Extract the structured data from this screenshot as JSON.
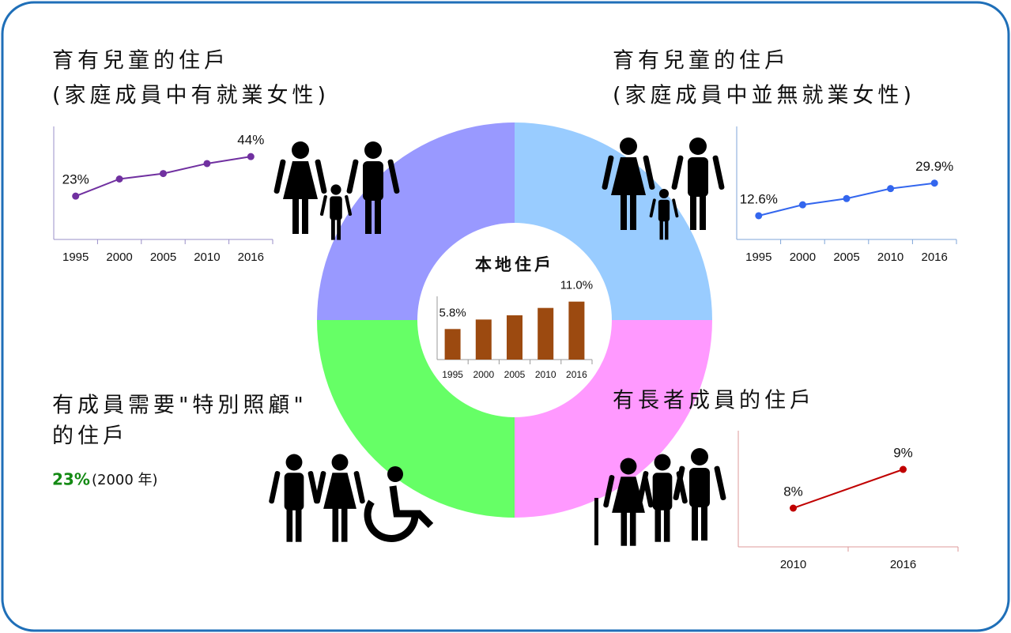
{
  "chart_data": [
    {
      "type": "line",
      "title": [
        "育有兒童的住戶",
        "(家庭成員中有就業女性)"
      ],
      "categories": [
        "1995",
        "2000",
        "2005",
        "2010",
        "2016"
      ],
      "values": [
        23,
        32.1,
        35,
        40.3,
        44
      ],
      "value_labels": [
        "23%",
        null,
        null,
        null,
        "44%"
      ],
      "color": "#7030a0",
      "ylim": [
        0,
        60
      ]
    },
    {
      "type": "line",
      "title": [
        "育有兒童的住戶",
        "(家庭成員中並無就業女性)"
      ],
      "categories": [
        "1995",
        "2000",
        "2005",
        "2010",
        "2016"
      ],
      "values": [
        12.6,
        18.4,
        21.7,
        27.0,
        29.9
      ],
      "value_labels": [
        "12.6%",
        null,
        null,
        null,
        "29.9%"
      ],
      "color": "#3366ee",
      "ylim": [
        0,
        60
      ]
    },
    {
      "type": "bar",
      "title": [
        "本地住戶"
      ],
      "categories": [
        "1995",
        "2000",
        "2005",
        "2010",
        "2016"
      ],
      "values": [
        5.8,
        7.6,
        8.4,
        9.8,
        11.0
      ],
      "value_labels": [
        "5.8%",
        null,
        null,
        null,
        "11.0%"
      ],
      "color": "#9c4a10",
      "ylim": [
        0,
        12
      ]
    },
    {
      "type": "line",
      "title": [
        "有長者成員的住戶"
      ],
      "categories": [
        "2010",
        "2016"
      ],
      "values": [
        8,
        9
      ],
      "value_labels": [
        "8%",
        "9%"
      ],
      "color": "#c00000",
      "ylim": [
        7,
        10
      ]
    }
  ],
  "special_care": {
    "title": [
      "有成員需要\"特別照顧\"",
      "的住戶"
    ],
    "value": "23%",
    "year": "(2000 年)"
  }
}
